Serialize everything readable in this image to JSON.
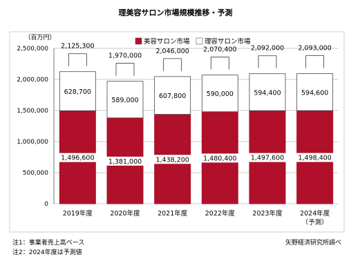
{
  "chart_data": {
    "type": "bar",
    "stacked": true,
    "title": "理美容サロン市場規模推移・予測",
    "ylabel": "（百万円）",
    "ylim": [
      0,
      2500000
    ],
    "yticks": [
      0,
      500000,
      1000000,
      1500000,
      2000000,
      2500000
    ],
    "ytick_labels": [
      "0",
      "500,000",
      "1,000,000",
      "1,500,000",
      "2,000,000",
      "2,500,000"
    ],
    "categories": [
      "2019年度",
      "2020年度",
      "2021年度",
      "2022年度",
      "2023年度",
      "2024年度"
    ],
    "category_sublabels": [
      "",
      "",
      "",
      "",
      "",
      "（予測）"
    ],
    "series": [
      {
        "name": "美容サロン市場",
        "color": "#b0102a",
        "values": [
          1496600,
          1381000,
          1438200,
          1480400,
          1497600,
          1498400
        ],
        "labels": [
          "1,496,600",
          "1,381,000",
          "1,438,200",
          "1,480,400",
          "1,497,600",
          "1,498,400"
        ]
      },
      {
        "name": "理容サロン市場",
        "color": "#ffffff",
        "values": [
          628700,
          589000,
          607800,
          590000,
          594400,
          594600
        ],
        "labels": [
          "628,700",
          "589,000",
          "607,800",
          "590,000",
          "594,400",
          "594,600"
        ]
      }
    ],
    "totals": [
      2125300,
      1970000,
      2046000,
      2070400,
      2092000,
      2093000
    ],
    "total_labels": [
      "2,125,300",
      "1,970,000",
      "2,046,000",
      "2,070,400",
      "2,092,000",
      "2,093,000"
    ],
    "legend_position": "top"
  },
  "notes": [
    "注1：事業者売上高ベース",
    "注2：2024年度は予測値"
  ],
  "source": "矢野経済研究所調べ"
}
